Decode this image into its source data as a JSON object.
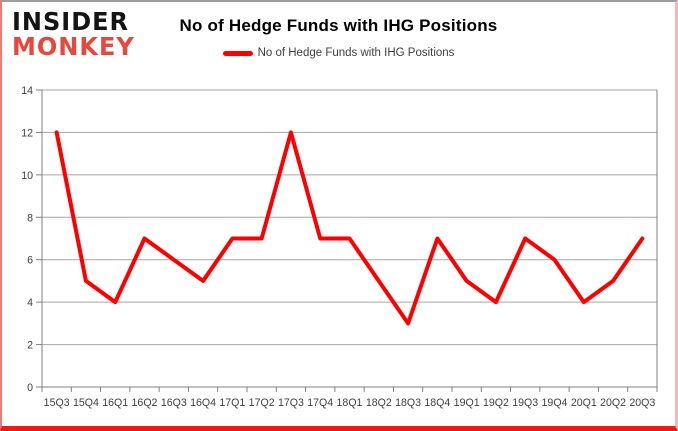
{
  "logo": {
    "line1": "INSIDER",
    "line2": "MONKEY"
  },
  "header": {
    "title": "No of Hedge Funds with IHG Positions"
  },
  "legend": {
    "label": "No of Hedge Funds with IHG Positions"
  },
  "colors": {
    "line": "#ff0000",
    "logo_accent": "#e8483c",
    "grid": "#a6a6a6",
    "axis": "#808080",
    "axis_text": "#3f3f3f",
    "bottom_bar": "#fb1410"
  },
  "chart_data": {
    "type": "line",
    "title": "No of Hedge Funds with IHG Positions",
    "categories": [
      "15Q3",
      "15Q4",
      "16Q1",
      "16Q2",
      "16Q3",
      "16Q4",
      "17Q1",
      "17Q2",
      "17Q3",
      "17Q4",
      "18Q1",
      "18Q2",
      "18Q3",
      "18Q4",
      "19Q1",
      "19Q2",
      "19Q3",
      "19Q4",
      "20Q1",
      "20Q2",
      "20Q3"
    ],
    "series": [
      {
        "name": "No of Hedge Funds with IHG Positions",
        "color": "#ff0000",
        "values": [
          12,
          5,
          4,
          7,
          6,
          5,
          7,
          7,
          12,
          7,
          7,
          5,
          3,
          7,
          5,
          4,
          7,
          6,
          4,
          5,
          7
        ]
      }
    ],
    "xlabel": "",
    "ylabel": "",
    "ylim": [
      0,
      14
    ],
    "yticks": [
      0,
      2,
      4,
      6,
      8,
      10,
      12,
      14
    ],
    "grid": true,
    "legend_position": "top"
  }
}
